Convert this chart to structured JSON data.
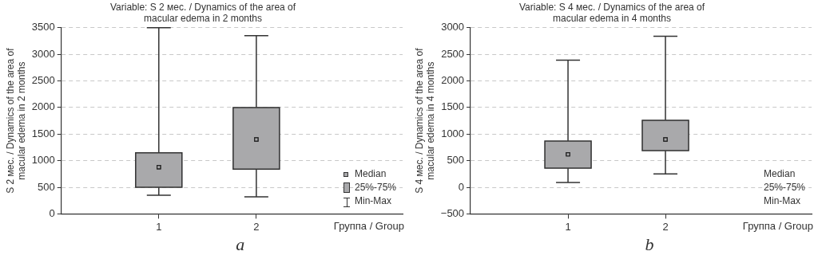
{
  "chart_data": [
    {
      "type": "box",
      "title": "Variable: S 2 мес. / Dynamics of the area of macular edema in 2 months",
      "ylabel": "S 2 мес. / Dynamics of the area of macular edema in 2 months",
      "xlabel": "Группа / Group",
      "categories": [
        "1",
        "2"
      ],
      "color": "#a9a9ab",
      "boxes": [
        {
          "low": 350,
          "q1": 500,
          "median": 880,
          "q3": 1150,
          "high": 3500
        },
        {
          "low": 320,
          "q1": 840,
          "median": 1400,
          "q3": 2000,
          "high": 3350
        }
      ],
      "ylim": [
        0,
        3500
      ],
      "yticks": [
        0,
        500,
        1000,
        1500,
        2000,
        2500,
        3000,
        3500
      ],
      "grid": "y",
      "annotations": [
        "Median",
        "25%-75%",
        "Min-Max",
        "a"
      ]
    },
    {
      "type": "box",
      "title": "Variable: S 4 мес. / Dynamics of the area of macular edema in 4 months",
      "ylabel": "S 4 мес. / Dynamics of the area of macular edema in 4 months",
      "xlabel": "Группа / Group",
      "categories": [
        "1",
        "2"
      ],
      "color": "#a9a9ab",
      "boxes": [
        {
          "low": 90,
          "q1": 360,
          "median": 620,
          "q3": 870,
          "high": 2390
        },
        {
          "low": 250,
          "q1": 690,
          "median": 900,
          "q3": 1260,
          "high": 2840
        }
      ],
      "ylim": [
        -500,
        3000
      ],
      "yticks": [
        -500,
        0,
        500,
        1000,
        1500,
        2000,
        2500,
        3000
      ],
      "grid": "y",
      "annotations": [
        "Median",
        "25%-75%",
        "Min-Max",
        "b"
      ]
    }
  ]
}
